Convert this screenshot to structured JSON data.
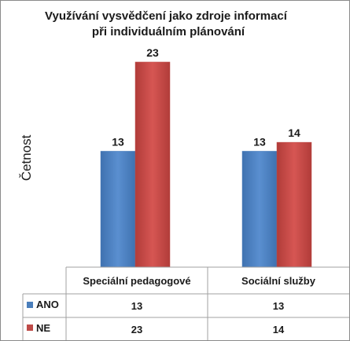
{
  "chart_data": {
    "type": "bar",
    "title": [
      "Využívání vysvědčení  jako zdroje informací",
      "při individuálním plánování"
    ],
    "ylabel": "Četnost",
    "xlabel": "",
    "categories": [
      "Speciální pedagogové",
      "Sociální služby"
    ],
    "series": [
      {
        "name": "ANO",
        "color": "#4a7ebb",
        "values": [
          13,
          13
        ]
      },
      {
        "name": "NE",
        "color": "#be4b48",
        "values": [
          23,
          14
        ]
      }
    ],
    "ylim": [
      0,
      25
    ],
    "grid": false,
    "legend": "data-table"
  }
}
